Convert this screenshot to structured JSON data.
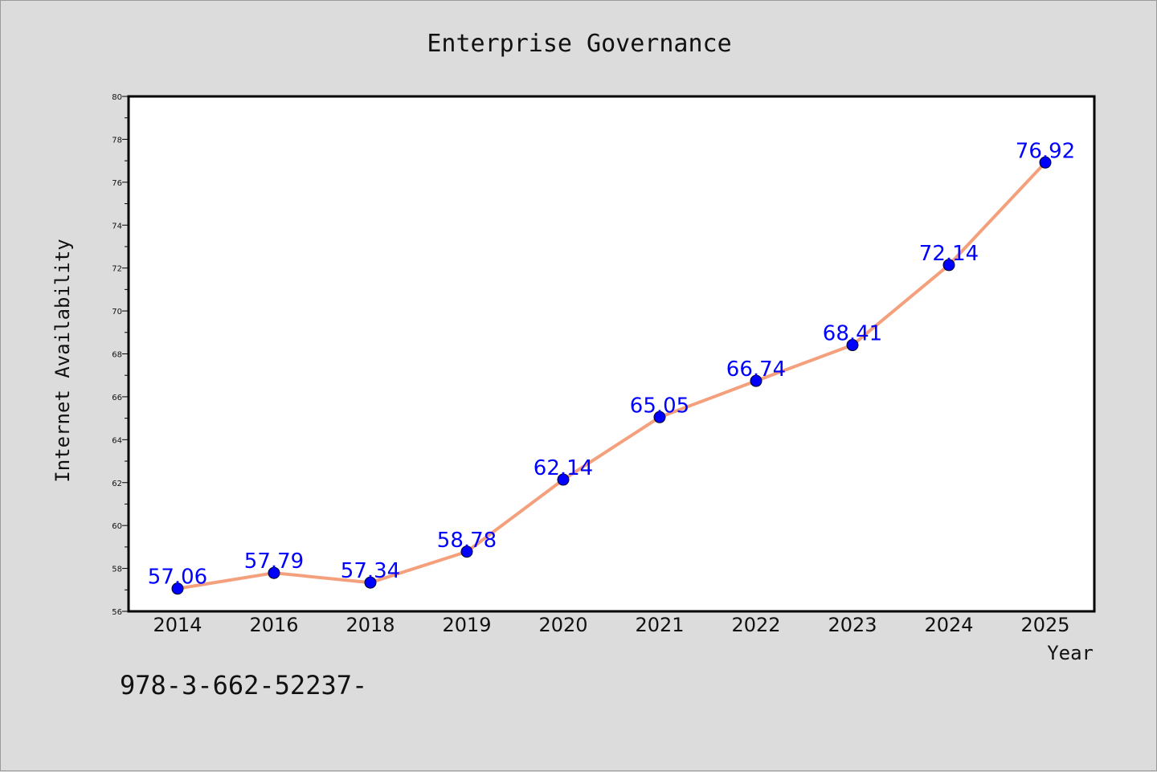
{
  "chart_data": {
    "type": "line",
    "title": "Enterprise Governance",
    "xlabel": "Year",
    "ylabel": "Internet Availability",
    "categories": [
      "2014",
      "2016",
      "2018",
      "2019",
      "2020",
      "2021",
      "2022",
      "2023",
      "2024",
      "2025"
    ],
    "series": [
      {
        "values": [
          57.06,
          57.79,
          57.34,
          58.78,
          62.14,
          65.05,
          66.74,
          68.41,
          72.14,
          76.92
        ],
        "labels": [
          "57.06",
          "57.79",
          "57.34",
          "58.78",
          "62.14",
          "65.05",
          "66.74",
          "68.41",
          "72.14",
          "76.92"
        ],
        "line_color": "#f4a07c",
        "marker_color": "#0000ff"
      }
    ],
    "ylim": [
      56,
      80
    ],
    "yticks": [
      "56",
      "58",
      "60",
      "62",
      "64",
      "66",
      "68",
      "70",
      "72",
      "74",
      "76",
      "78",
      "80"
    ],
    "grid": false,
    "legend": "none"
  },
  "footer": {
    "text": "978-3-662-52237-"
  }
}
